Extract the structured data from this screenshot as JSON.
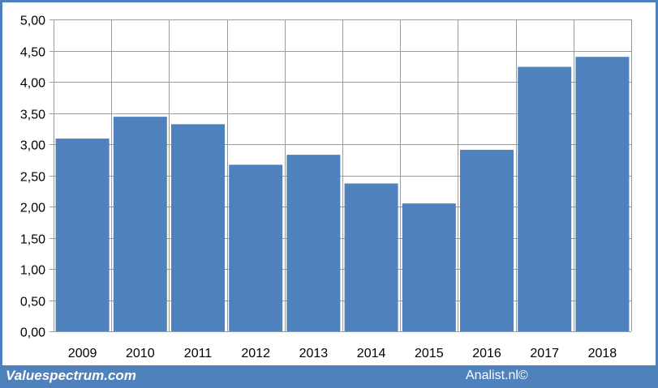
{
  "chart_data": {
    "type": "bar",
    "categories": [
      "2009",
      "2010",
      "2011",
      "2012",
      "2013",
      "2014",
      "2015",
      "2016",
      "2017",
      "2018"
    ],
    "values": [
      3.09,
      3.44,
      3.32,
      2.67,
      2.83,
      2.37,
      2.05,
      2.91,
      4.24,
      4.4
    ],
    "title": "",
    "xlabel": "",
    "ylabel": "",
    "ylim": [
      0,
      5
    ],
    "yticks": [
      0,
      0.5,
      1,
      1.5,
      2,
      2.5,
      3,
      3.5,
      4,
      4.5,
      5
    ],
    "ytick_labels": [
      "0,00",
      "0,50",
      "1,00",
      "1,50",
      "2,00",
      "2,50",
      "3,00",
      "3,50",
      "4,00",
      "4,50",
      "5,00"
    ],
    "grid": "vertical and horizontal",
    "legend": "none",
    "bar_color": "#4f81bd"
  },
  "footer": {
    "left_text": "Valuespectrum.com",
    "right_text": "Analist.nl©"
  },
  "colors": {
    "frame": "#4f81bd",
    "grid": "#9a9a9a"
  }
}
